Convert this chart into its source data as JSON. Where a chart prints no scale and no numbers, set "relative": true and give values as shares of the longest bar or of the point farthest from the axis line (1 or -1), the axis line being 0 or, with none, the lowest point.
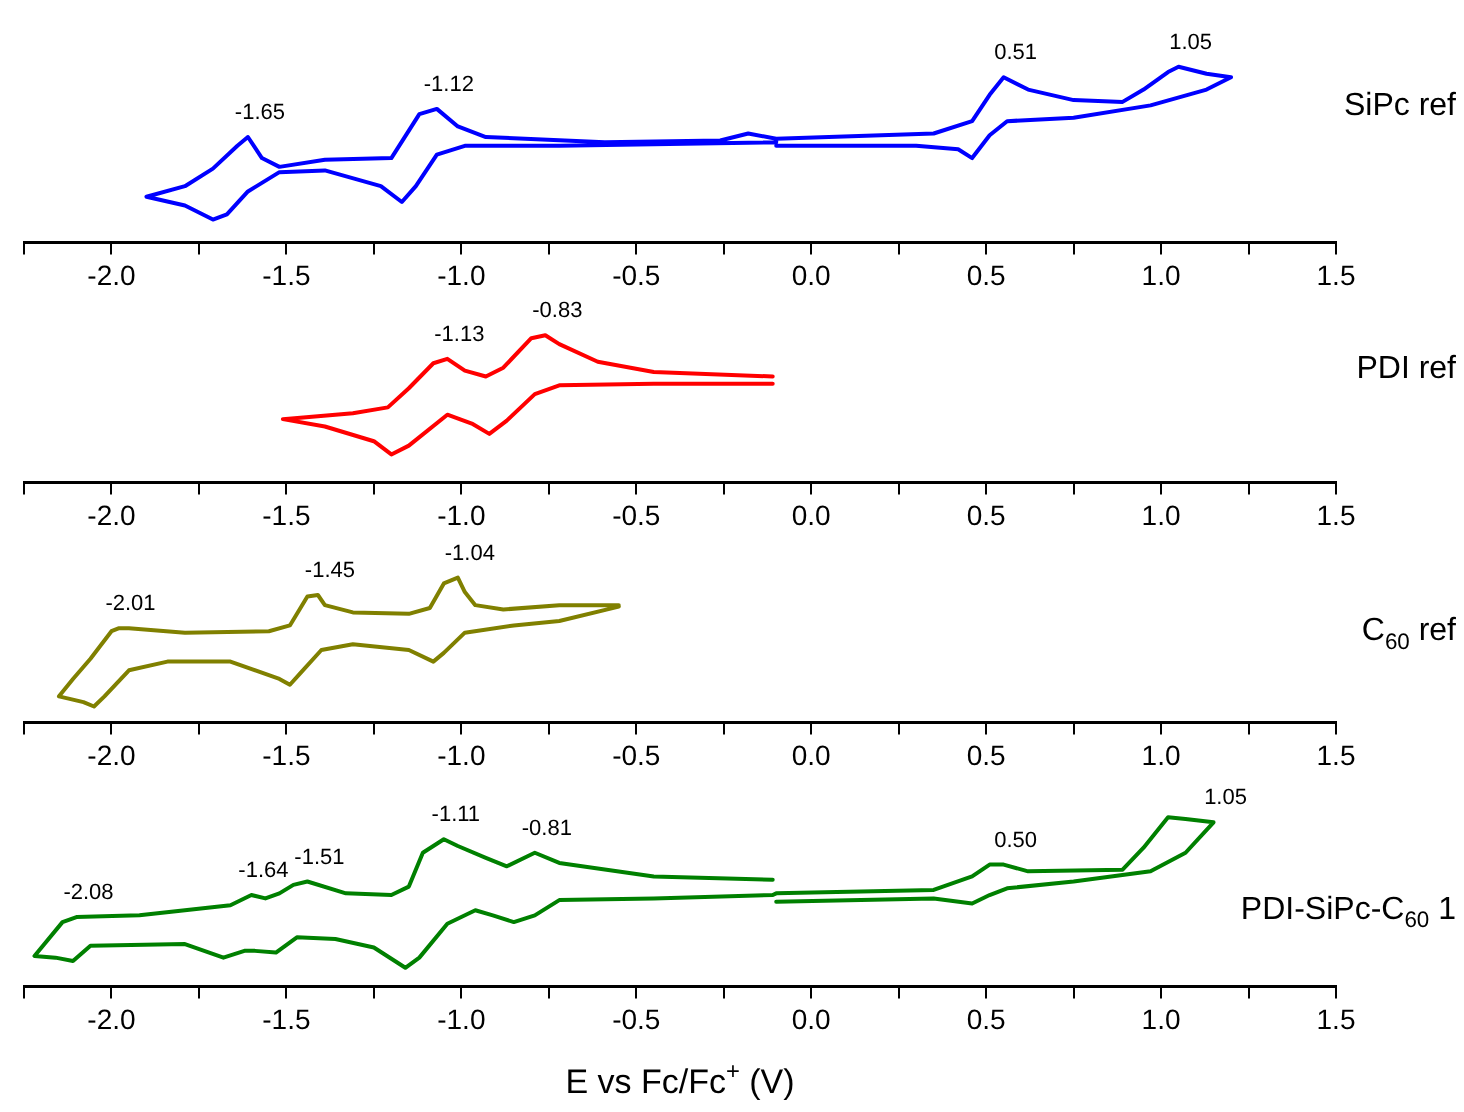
{
  "chart_data": [
    {
      "type": "line",
      "relative": true,
      "marker": "none",
      "xlim": [
        -2.25,
        1.5
      ],
      "xticks": [
        {
          "value": -2.25,
          "label": null
        },
        {
          "value": -2,
          "label": "-2.0"
        },
        {
          "value": -1.75,
          "label": null
        },
        -1.5,
        {
          "value": -1.25,
          "label": null
        },
        {
          "value": -1,
          "label": "-1.0"
        },
        {
          "value": -0.75,
          "label": null
        },
        -0.5,
        {
          "value": -0.25,
          "label": null
        },
        {
          "value": 0,
          "label": "0.0"
        },
        {
          "value": 0.25,
          "label": null
        },
        0.5,
        {
          "value": 0.75,
          "label": null
        },
        {
          "value": 1,
          "label": "1.0"
        },
        {
          "value": 1.25,
          "label": null
        },
        1.5
      ],
      "series": [
        {
          "name": "SiPc ref",
          "color": "#0000ff",
          "x": [
            -0.1,
            -0.18,
            -0.26,
            -0.59,
            -0.93,
            -1.01,
            -1.07,
            -1.12,
            -1.2,
            -1.39,
            -1.52,
            -1.57,
            -1.61,
            -1.64,
            -1.71,
            -1.79,
            -1.9,
            -1.79,
            -1.71,
            -1.67,
            -1.61,
            -1.52,
            -1.39,
            -1.23,
            -1.17,
            -1.13,
            -1.07,
            -0.99,
            -0.72,
            -0.1,
            -0.1,
            0.35,
            0.46,
            0.51,
            0.55,
            0.62,
            0.75,
            0.89,
            0.95,
            1.02,
            1.05,
            1.13,
            1.2,
            1.13,
            0.97,
            0.75,
            0.56,
            0.51,
            0.46,
            0.42,
            0.3,
            -0.1
          ],
          "values": [
            0.59,
            0.62,
            0.58,
            0.57,
            0.6,
            0.66,
            0.76,
            0.73,
            0.48,
            0.47,
            0.43,
            0.48,
            0.6,
            0.55,
            0.42,
            0.32,
            0.26,
            0.21,
            0.13,
            0.16,
            0.29,
            0.4,
            0.41,
            0.32,
            0.23,
            0.32,
            0.5,
            0.55,
            0.55,
            0.57,
            0.59,
            0.62,
            0.69,
            0.84,
            0.94,
            0.87,
            0.81,
            0.8,
            0.87,
            0.97,
            1.0,
            0.96,
            0.94,
            0.87,
            0.78,
            0.71,
            0.69,
            0.61,
            0.48,
            0.53,
            0.55,
            0.55
          ]
        }
      ],
      "annotations": [
        {
          "text": "-1.65",
          "x": -1.61,
          "y": 0.6
        },
        {
          "text": "-1.12",
          "x": -1.07,
          "y": 0.76
        },
        {
          "text": "0.51",
          "x": 0.55,
          "y": 0.94
        },
        {
          "text": "1.05",
          "x": 1.05,
          "y": 1.0
        }
      ]
    },
    {
      "type": "line",
      "relative": true,
      "marker": "none",
      "xlim": [
        -2.25,
        1.5
      ],
      "xticks": [
        {
          "value": -2.25,
          "label": null
        },
        {
          "value": -2,
          "label": "-2.0"
        },
        {
          "value": -1.75,
          "label": null
        },
        -1.5,
        {
          "value": -1.25,
          "label": null
        },
        {
          "value": -1,
          "label": "-1.0"
        },
        {
          "value": -0.75,
          "label": null
        },
        -0.5,
        {
          "value": -0.25,
          "label": null
        },
        {
          "value": 0,
          "label": "0.0"
        },
        {
          "value": 0.25,
          "label": null
        },
        0.5,
        {
          "value": 0.75,
          "label": null
        },
        {
          "value": 1,
          "label": "1.0"
        },
        {
          "value": 1.25,
          "label": null
        },
        1.5
      ],
      "series": [
        {
          "name": "PDI ref",
          "color": "#ff0000",
          "x": [
            -0.11,
            -0.45,
            -0.61,
            -0.72,
            -0.76,
            -0.8,
            -0.88,
            -0.93,
            -0.99,
            -1.04,
            -1.08,
            -1.15,
            -1.21,
            -1.31,
            -1.51,
            -1.39,
            -1.25,
            -1.2,
            -1.15,
            -1.04,
            -0.97,
            -0.92,
            -0.87,
            -0.79,
            -0.72,
            -0.45,
            -0.11
          ],
          "values": [
            0.72,
            0.75,
            0.82,
            0.94,
            1.0,
            0.98,
            0.78,
            0.72,
            0.76,
            0.84,
            0.81,
            0.64,
            0.51,
            0.47,
            0.43,
            0.38,
            0.28,
            0.19,
            0.25,
            0.46,
            0.4,
            0.33,
            0.42,
            0.6,
            0.66,
            0.67,
            0.67
          ]
        }
      ],
      "annotations": [
        {
          "text": "-1.13",
          "x": -1.04,
          "y": 0.84
        },
        {
          "text": "-0.83",
          "x": -0.76,
          "y": 1.0
        }
      ]
    },
    {
      "type": "line",
      "relative": true,
      "marker": "none",
      "xlim": [
        -2.25,
        1.5
      ],
      "xticks": [
        {
          "value": -2.25,
          "label": null
        },
        {
          "value": -2,
          "label": "-2.0"
        },
        {
          "value": -1.75,
          "label": null
        },
        -1.5,
        {
          "value": -1.25,
          "label": null
        },
        {
          "value": -1,
          "label": "-1.0"
        },
        {
          "value": -0.75,
          "label": null
        },
        -0.5,
        {
          "value": -0.25,
          "label": null
        },
        {
          "value": 0,
          "label": "0.0"
        },
        {
          "value": 0.25,
          "label": null
        },
        0.5,
        {
          "value": 0.75,
          "label": null
        },
        {
          "value": 1,
          "label": "1.0"
        },
        {
          "value": 1.25,
          "label": null
        },
        1.5
      ],
      "series": [
        {
          "name": "C$_{60}$ ref",
          "color": "#808000",
          "x": [
            -0.55,
            -0.72,
            -0.88,
            -0.96,
            -0.99,
            -1.01,
            -1.05,
            -1.09,
            -1.15,
            -1.31,
            -1.39,
            -1.41,
            -1.44,
            -1.49,
            -1.55,
            -1.79,
            -1.95,
            -1.98,
            -2.0,
            -2.06,
            -2.11,
            -2.15,
            -2.08,
            -2.05,
            -2.02,
            -1.95,
            -1.84,
            -1.66,
            -1.52,
            -1.49,
            -1.46,
            -1.4,
            -1.31,
            -1.15,
            -1.08,
            -1.05,
            -0.99,
            -0.85,
            -0.72,
            -0.55
          ],
          "values": [
            0.81,
            0.81,
            0.78,
            0.81,
            0.9,
            1.0,
            0.96,
            0.79,
            0.75,
            0.76,
            0.81,
            0.88,
            0.87,
            0.67,
            0.63,
            0.62,
            0.65,
            0.65,
            0.63,
            0.44,
            0.3,
            0.18,
            0.14,
            0.11,
            0.18,
            0.36,
            0.42,
            0.42,
            0.3,
            0.26,
            0.34,
            0.5,
            0.54,
            0.5,
            0.42,
            0.48,
            0.62,
            0.67,
            0.7,
            0.8
          ]
        }
      ],
      "annotations": [
        {
          "text": "-2.01",
          "x": -1.98,
          "y": 0.65
        },
        {
          "text": "-1.45",
          "x": -1.41,
          "y": 0.88
        },
        {
          "text": "-1.04",
          "x": -1.01,
          "y": 1.0
        }
      ]
    },
    {
      "type": "line",
      "relative": true,
      "marker": "none",
      "xlabel": "E vs Fc/Fc$^{+}$ (V)",
      "xlim": [
        -2.25,
        1.5
      ],
      "xticks": [
        {
          "value": -2.25,
          "label": null
        },
        {
          "value": -2,
          "label": "-2.0"
        },
        {
          "value": -1.75,
          "label": null
        },
        -1.5,
        {
          "value": -1.25,
          "label": null
        },
        {
          "value": -1,
          "label": "-1.0"
        },
        {
          "value": -0.75,
          "label": null
        },
        -0.5,
        {
          "value": -0.25,
          "label": null
        },
        {
          "value": 0,
          "label": "0.0"
        },
        {
          "value": 0.25,
          "label": null
        },
        0.5,
        {
          "value": 0.75,
          "label": null
        },
        {
          "value": 1,
          "label": "1.0"
        },
        {
          "value": 1.25,
          "label": null
        },
        1.5
      ],
      "series": [
        {
          "name": "PDI-SiPc-C$_{60}$ 1",
          "color": "#008000",
          "x": [
            -0.11,
            -0.45,
            -0.72,
            -0.79,
            -0.87,
            -0.93,
            -1.01,
            -1.05,
            -1.11,
            -1.15,
            -1.2,
            -1.33,
            -1.44,
            -1.48,
            -1.52,
            -1.56,
            -1.6,
            -1.66,
            -1.92,
            -2.1,
            -2.14,
            -2.22,
            -2.16,
            -2.11,
            -2.06,
            -1.79,
            -1.68,
            -1.62,
            -1.59,
            -1.53,
            -1.47,
            -1.36,
            -1.25,
            -1.16,
            -1.12,
            -1.04,
            -0.96,
            -0.91,
            -0.85,
            -0.79,
            -0.72,
            -0.45,
            -0.11,
            -0.1,
            0.35,
            0.46,
            0.51,
            0.55,
            0.62,
            0.89,
            0.95,
            1.02,
            1.07,
            1.15,
            1.07,
            0.97,
            0.75,
            0.56,
            0.51,
            0.46,
            0.35,
            -0.1
          ],
          "values": [
            0.63,
            0.65,
            0.73,
            0.79,
            0.71,
            0.76,
            0.83,
            0.87,
            0.79,
            0.59,
            0.54,
            0.55,
            0.62,
            0.6,
            0.55,
            0.52,
            0.54,
            0.48,
            0.42,
            0.41,
            0.38,
            0.18,
            0.17,
            0.15,
            0.24,
            0.25,
            0.17,
            0.21,
            0.21,
            0.2,
            0.29,
            0.28,
            0.23,
            0.11,
            0.17,
            0.37,
            0.45,
            0.42,
            0.38,
            0.42,
            0.51,
            0.52,
            0.54,
            0.55,
            0.57,
            0.65,
            0.72,
            0.72,
            0.68,
            0.69,
            0.82,
            1.0,
            0.99,
            0.97,
            0.79,
            0.68,
            0.62,
            0.58,
            0.54,
            0.49,
            0.52,
            0.5
          ]
        }
      ],
      "annotations": [
        {
          "text": "-2.08",
          "x": -2.1,
          "y": 0.41
        },
        {
          "text": "-1.64",
          "x": -1.6,
          "y": 0.54
        },
        {
          "text": "-1.51",
          "x": -1.44,
          "y": 0.62
        },
        {
          "text": "-1.11",
          "x": -1.05,
          "y": 0.87
        },
        {
          "text": "-0.81",
          "x": -0.79,
          "y": 0.79
        },
        {
          "text": "0.50",
          "x": 0.55,
          "y": 0.72
        },
        {
          "text": "1.05",
          "x": 1.15,
          "y": 0.97
        }
      ]
    }
  ]
}
